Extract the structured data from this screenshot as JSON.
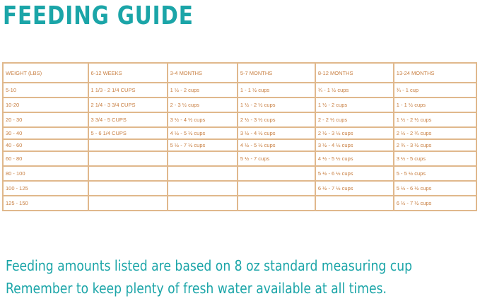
{
  "title": "FEEDING GUIDE",
  "table": {
    "headers": [
      "WEIGHT (LBS)",
      "6-12 WEEKS",
      "3-4 MONTHS",
      "5-7 MONTHS",
      "8-12 MONTHS",
      "13-24 MONTHS"
    ],
    "rows": [
      [
        "5-10",
        "1 1/3 - 2 1/4 CUPS",
        "1 ½ - 2 cups",
        "1 - 1 ½ cups",
        "¾ - 1 ½ cups",
        "¾ - 1 cup"
      ],
      [
        "10-20",
        "2 1/4 - 3 3/4 CUPS",
        "2 - 3 ½ cups",
        "1 ½ - 2 ½ cups",
        "1 ½ - 2 cups",
        "1 - 1 ½ cups"
      ],
      [
        "20 - 30",
        "3 3/4 - 5 CUPS",
        "3 ½ - 4 ½ cups",
        "2 ½ - 3 ½ cups",
        "2 - 2 ½ cups",
        "1 ½ - 2 ½ cups"
      ],
      [
        "30 - 40",
        "5 - 6 1/4 CUPS",
        "4 ½ - 5 ½ cups",
        "3 ½ - 4 ½ cups",
        "2 ½ - 3 ½ cups",
        "2 ½ - 2 ¾ cups"
      ],
      [
        "40 - 60",
        "",
        "5 ½ - 7 ½ cups",
        "4 ½ - 5 ½ cups",
        "3 ½ - 4 ½ cups",
        "2 ¾ - 3 ½ cups"
      ],
      [
        "60 - 80",
        "",
        "",
        "5 ½ - 7 cups",
        "4 ½ - 5 ½ cups",
        "3 ½ - 5 cups"
      ],
      [
        "80 - 100",
        "",
        "",
        "",
        "5 ½ - 6 ½ cups",
        "5 - 5 ½ cups"
      ],
      [
        "100 - 125",
        "",
        "",
        "",
        "6 ½ - 7 ½ cups",
        "5 ½ - 6 ½ cups"
      ],
      [
        "125 - 150",
        "",
        "",
        "",
        "",
        "6 ½ - 7 ½ cups"
      ]
    ]
  },
  "notes": [
    "Feeding amounts listed are based on 8 oz standard measuring cup",
    "Remember to keep plenty of fresh water available at all times."
  ],
  "colors": {
    "accent": "#1ba5a8",
    "table_border": "#e0b88c",
    "table_text": "#c77d3f"
  }
}
